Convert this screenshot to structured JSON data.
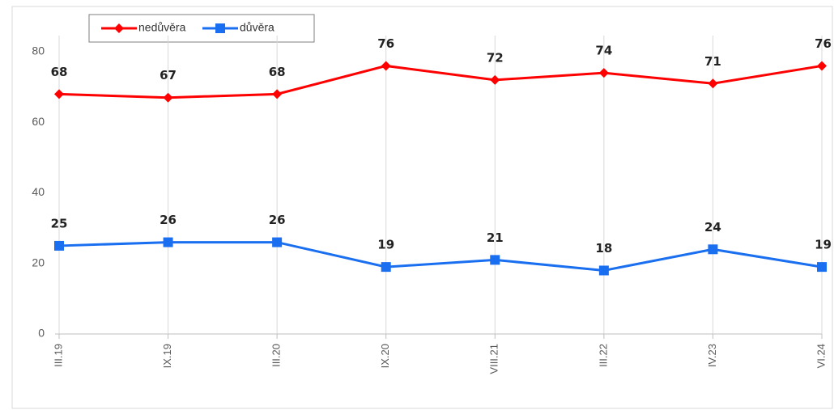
{
  "chart_data": {
    "type": "line",
    "categories": [
      "III.19",
      "IX.19",
      "III.20",
      "IX.20",
      "VIII.21",
      "III.22",
      "IV.23",
      "VI.24"
    ],
    "series": [
      {
        "name": "nedůvěra",
        "color": "#ff0000",
        "marker": "diamond",
        "values": [
          68,
          67,
          68,
          76,
          72,
          74,
          71,
          76
        ]
      },
      {
        "name": "důvěra",
        "color": "#1a6ff0",
        "marker": "square",
        "values": [
          25,
          26,
          26,
          19,
          21,
          18,
          24,
          19
        ]
      }
    ],
    "ylim": [
      0,
      80
    ],
    "yticks": [
      0,
      20,
      40,
      60,
      80
    ],
    "grid": "x"
  }
}
